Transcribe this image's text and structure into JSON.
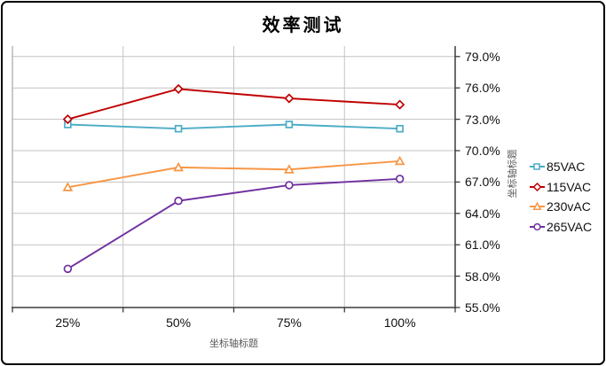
{
  "chart_data": {
    "type": "line",
    "title": "效率测试",
    "categories": [
      "25%",
      "50%",
      "75%",
      "100%"
    ],
    "series": [
      {
        "name": "85VAC",
        "color": "#4BACC6",
        "marker": "square",
        "values": [
          72.5,
          72.1,
          72.5,
          72.1
        ]
      },
      {
        "name": "115VAC",
        "color": "#C00000",
        "marker": "diamond",
        "values": [
          73.0,
          75.9,
          75.0,
          74.4
        ]
      },
      {
        "name": "230vAC",
        "color": "#F79646",
        "marker": "triangle",
        "values": [
          66.5,
          68.4,
          68.2,
          69.0
        ]
      },
      {
        "name": "265VAC",
        "color": "#7030A0",
        "marker": "circle",
        "values": [
          58.7,
          65.2,
          66.7,
          67.3
        ]
      }
    ],
    "xlabel": "坐标轴标题",
    "ylabel": "坐标轴标题",
    "ylim": [
      55,
      80
    ],
    "y_major_unit": 3,
    "y_tick_labels": [
      "55.0%",
      "58.0%",
      "61.0%",
      "64.0%",
      "67.0%",
      "70.0%",
      "73.0%",
      "76.0%",
      "79.0%"
    ],
    "grid": true,
    "legend_position": "right",
    "grid_color": "#C3C3C3",
    "axis_color": "#3B3B3B",
    "plot_border_color": "#A6A6A6"
  }
}
